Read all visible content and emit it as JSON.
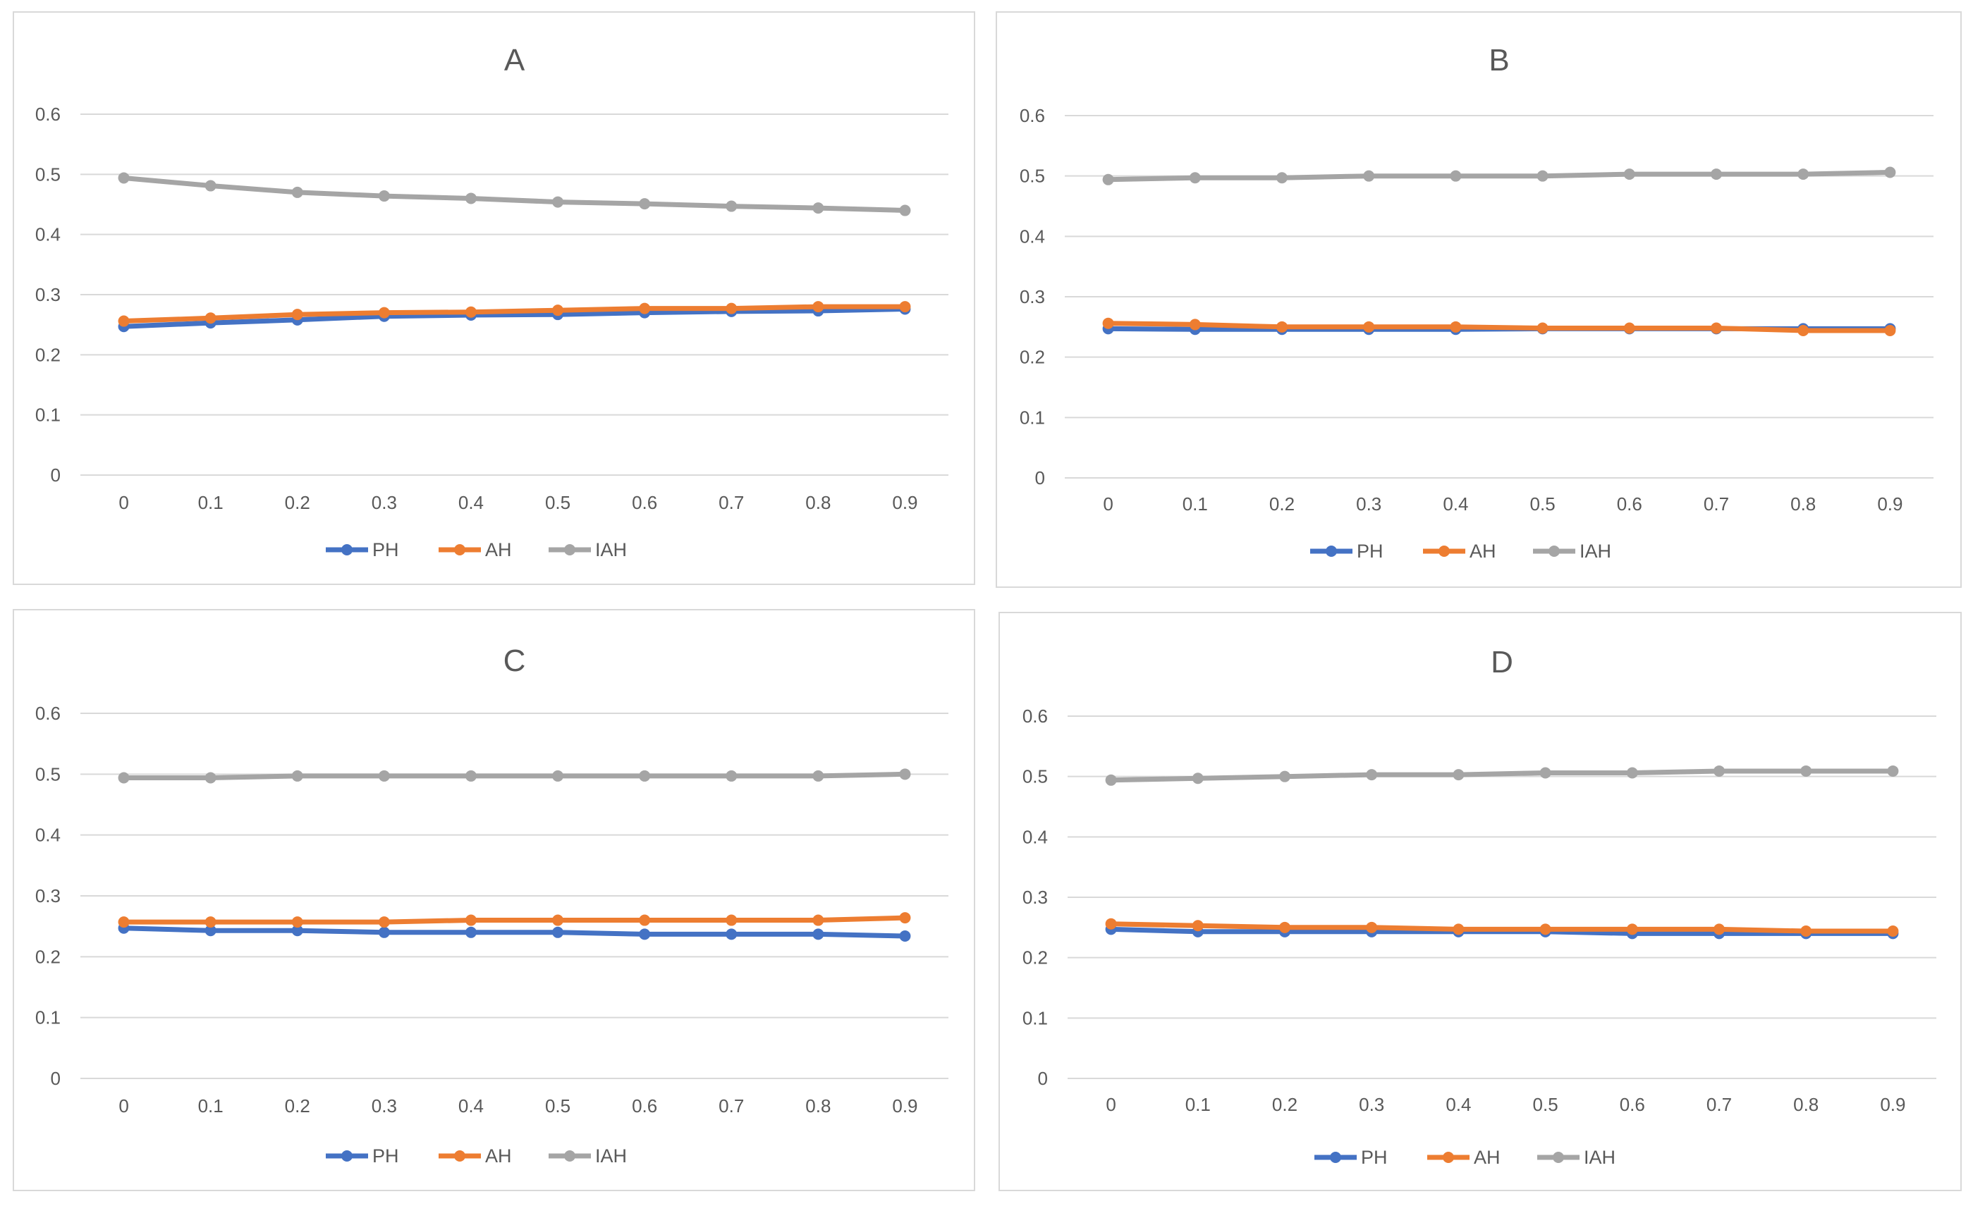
{
  "colors": {
    "PH": "#4472c4",
    "AH": "#ed7d31",
    "IAH": "#a5a5a5",
    "grid": "#d9d9d9",
    "text": "#595959"
  },
  "chart_data": [
    {
      "type": "line",
      "title": "A",
      "categories": [
        "0",
        "0.1",
        "0.2",
        "0.3",
        "0.4",
        "0.5",
        "0.6",
        "0.7",
        "0.8",
        "0.9"
      ],
      "yticks": [
        "0",
        "0.1",
        "0.2",
        "0.3",
        "0.4",
        "0.5",
        "0.6"
      ],
      "ylim": [
        0,
        0.6
      ],
      "legend_position": "bottom",
      "series": [
        {
          "name": "PH",
          "values": [
            0.247,
            0.253,
            0.258,
            0.264,
            0.266,
            0.267,
            0.27,
            0.272,
            0.273,
            0.276
          ]
        },
        {
          "name": "AH",
          "values": [
            0.256,
            0.261,
            0.267,
            0.27,
            0.271,
            0.274,
            0.277,
            0.277,
            0.28,
            0.28
          ]
        },
        {
          "name": "IAH",
          "values": [
            0.494,
            0.481,
            0.47,
            0.464,
            0.46,
            0.454,
            0.451,
            0.447,
            0.444,
            0.44
          ]
        }
      ]
    },
    {
      "type": "line",
      "title": "B",
      "categories": [
        "0",
        "0.1",
        "0.2",
        "0.3",
        "0.4",
        "0.5",
        "0.6",
        "0.7",
        "0.8",
        "0.9"
      ],
      "yticks": [
        "0",
        "0.1",
        "0.2",
        "0.3",
        "0.4",
        "0.5",
        "0.6"
      ],
      "ylim": [
        0,
        0.6
      ],
      "legend_position": "bottom",
      "series": [
        {
          "name": "PH",
          "values": [
            0.247,
            0.246,
            0.246,
            0.246,
            0.246,
            0.247,
            0.247,
            0.247,
            0.247,
            0.247
          ]
        },
        {
          "name": "AH",
          "values": [
            0.256,
            0.254,
            0.25,
            0.25,
            0.25,
            0.248,
            0.248,
            0.248,
            0.244,
            0.244
          ]
        },
        {
          "name": "IAH",
          "values": [
            0.494,
            0.497,
            0.497,
            0.5,
            0.5,
            0.5,
            0.503,
            0.503,
            0.503,
            0.506
          ]
        }
      ]
    },
    {
      "type": "line",
      "title": "C",
      "categories": [
        "0",
        "0.1",
        "0.2",
        "0.3",
        "0.4",
        "0.5",
        "0.6",
        "0.7",
        "0.8",
        "0.9"
      ],
      "yticks": [
        "0",
        "0.1",
        "0.2",
        "0.3",
        "0.4",
        "0.5",
        "0.6"
      ],
      "ylim": [
        0,
        0.6
      ],
      "legend_position": "bottom",
      "series": [
        {
          "name": "PH",
          "values": [
            0.247,
            0.243,
            0.243,
            0.24,
            0.24,
            0.24,
            0.237,
            0.237,
            0.237,
            0.234
          ]
        },
        {
          "name": "AH",
          "values": [
            0.257,
            0.257,
            0.257,
            0.257,
            0.26,
            0.26,
            0.26,
            0.26,
            0.26,
            0.264
          ]
        },
        {
          "name": "IAH",
          "values": [
            0.494,
            0.494,
            0.497,
            0.497,
            0.497,
            0.497,
            0.497,
            0.497,
            0.497,
            0.5
          ]
        }
      ]
    },
    {
      "type": "line",
      "title": "D",
      "categories": [
        "0",
        "0.1",
        "0.2",
        "0.3",
        "0.4",
        "0.5",
        "0.6",
        "0.7",
        "0.8",
        "0.9"
      ],
      "yticks": [
        "0",
        "0.1",
        "0.2",
        "0.3",
        "0.4",
        "0.5",
        "0.6"
      ],
      "ylim": [
        0,
        0.6
      ],
      "legend_position": "bottom",
      "series": [
        {
          "name": "PH",
          "values": [
            0.247,
            0.243,
            0.243,
            0.243,
            0.243,
            0.243,
            0.24,
            0.24,
            0.24,
            0.24
          ]
        },
        {
          "name": "AH",
          "values": [
            0.256,
            0.253,
            0.25,
            0.25,
            0.247,
            0.247,
            0.247,
            0.247,
            0.244,
            0.244
          ]
        },
        {
          "name": "IAH",
          "values": [
            0.494,
            0.497,
            0.5,
            0.503,
            0.503,
            0.506,
            0.506,
            0.509,
            0.509,
            0.509
          ]
        }
      ]
    }
  ]
}
